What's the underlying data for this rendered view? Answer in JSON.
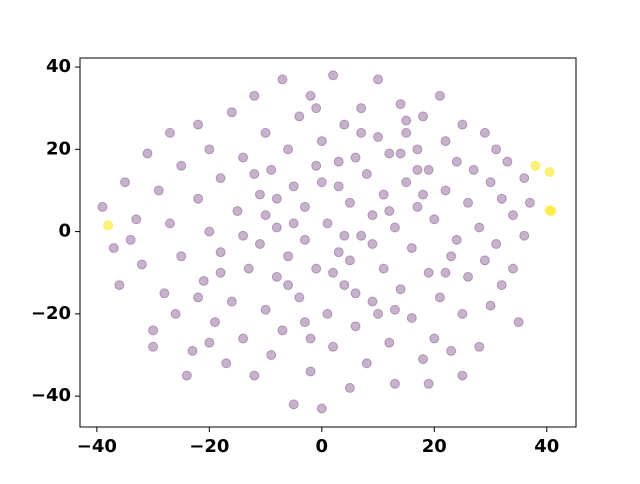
{
  "chart_data": {
    "type": "scatter",
    "xlim": [
      -43.0,
      45.2
    ],
    "ylim": [
      -47.5,
      42.2
    ],
    "xticks": [
      {
        "value": -40,
        "label": "−40"
      },
      {
        "value": -20,
        "label": "−20"
      },
      0,
      20,
      40
    ],
    "yticks": [
      {
        "value": -40,
        "label": "−40"
      },
      {
        "value": -20,
        "label": "−20"
      },
      0,
      20,
      40
    ],
    "grid": false,
    "series": [
      {
        "color": "#440154",
        "alpha": 0.3,
        "x": [
          -39,
          -37,
          -36,
          -35,
          -34,
          -33,
          -32,
          -31,
          -30,
          -30,
          -29,
          -28,
          -27,
          -27,
          -26,
          -25,
          -25,
          -24,
          -23,
          -22,
          -22,
          -21,
          -20,
          -20,
          -19,
          -18,
          -18,
          -17,
          -16,
          -16,
          -15,
          -14,
          -14,
          -13,
          -12,
          -12,
          -11,
          -11,
          -10,
          -10,
          -9,
          -9,
          -8,
          -8,
          -7,
          -7,
          -6,
          -6,
          -5,
          -5,
          -4,
          -4,
          -3,
          -3,
          -2,
          -2,
          -1,
          -1,
          0,
          0,
          1,
          1,
          2,
          2,
          3,
          3,
          4,
          4,
          5,
          5,
          6,
          6,
          7,
          7,
          8,
          8,
          9,
          9,
          10,
          10,
          11,
          11,
          12,
          12,
          13,
          13,
          14,
          14,
          15,
          15,
          16,
          16,
          17,
          17,
          18,
          18,
          19,
          19,
          20,
          20,
          21,
          21,
          22,
          22,
          23,
          23,
          24,
          24,
          25,
          25,
          26,
          26,
          27,
          28,
          28,
          29,
          29,
          30,
          30,
          31,
          31,
          32,
          32,
          33,
          34,
          34,
          35,
          36,
          36,
          37,
          -3,
          2,
          -6,
          5,
          9,
          12,
          14,
          17,
          -10,
          -14,
          0,
          -2,
          6,
          3,
          -8,
          10,
          18,
          -18,
          22,
          -12,
          4,
          -5,
          7,
          -1,
          13,
          15,
          -20,
          25,
          -22,
          19
        ],
        "values": [
          6,
          -4,
          -13,
          12,
          -2,
          3,
          -8,
          19,
          -28,
          -24,
          10,
          -15,
          24,
          2,
          -20,
          16,
          -6,
          -35,
          -29,
          26,
          8,
          -12,
          0,
          20,
          -22,
          13,
          -5,
          -32,
          29,
          -17,
          5,
          -26,
          18,
          -9,
          33,
          -35,
          9,
          -3,
          24,
          -19,
          15,
          -30,
          1,
          -11,
          37,
          -24,
          20,
          -6,
          -42,
          11,
          28,
          -16,
          -2,
          6,
          33,
          -34,
          16,
          -9,
          -43,
          22,
          2,
          -20,
          38,
          -28,
          11,
          -5,
          26,
          -13,
          -38,
          7,
          18,
          -23,
          30,
          -1,
          -32,
          14,
          4,
          -17,
          37,
          23,
          -9,
          9,
          -27,
          19,
          1,
          -37,
          31,
          -14,
          12,
          24,
          -4,
          -21,
          20,
          6,
          -31,
          28,
          -10,
          15,
          3,
          -26,
          33,
          -16,
          10,
          22,
          -6,
          -29,
          17,
          -2,
          26,
          -20,
          7,
          -11,
          15,
          -28,
          1,
          24,
          -7,
          12,
          -18,
          20,
          -3,
          8,
          -13,
          17,
          -9,
          4,
          -22,
          13,
          -1,
          7,
          -22,
          -10,
          -13,
          -7,
          -3,
          5,
          19,
          15,
          4,
          -1,
          12,
          -26,
          -15,
          17,
          8,
          -20,
          9,
          -10,
          -10,
          14,
          -1,
          2,
          24,
          30,
          -19,
          27,
          -27,
          -35,
          -16,
          -37
        ]
      },
      {
        "color": "#fde725",
        "alpha": 0.6,
        "x": [
          -38,
          38,
          40.5,
          40.8,
          40.5
        ],
        "values": [
          1.5,
          16,
          14.5,
          5,
          5.2
        ]
      }
    ]
  }
}
